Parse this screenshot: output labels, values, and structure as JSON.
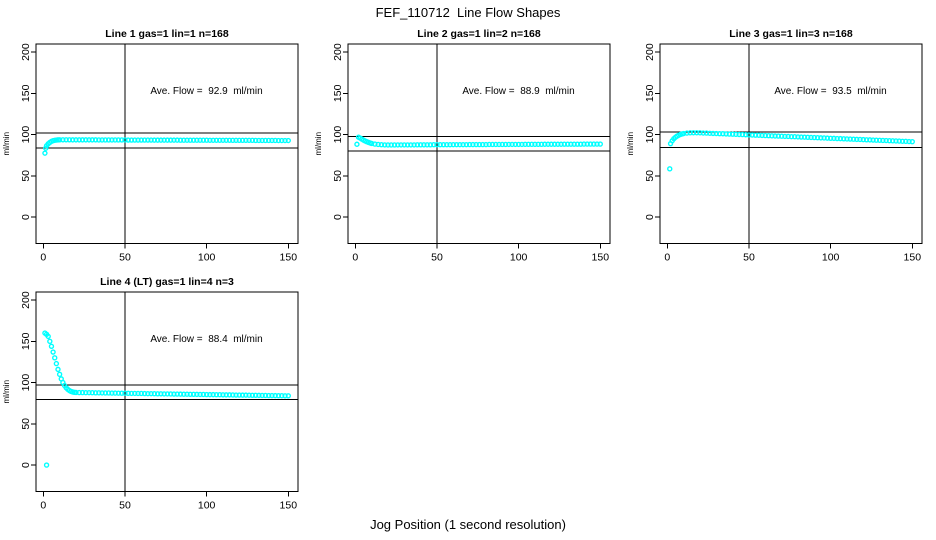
{
  "main_title": "FEF_110712  Line Flow Shapes",
  "x_axis_label": "Jog Position (1 second resolution)",
  "colors": {
    "marker": "#00ffff",
    "axis": "#000000",
    "text": "#000000",
    "background": "#ffffff"
  },
  "chart_data": [
    {
      "type": "scatter",
      "title": "Line 1 gas=1 lin=1 n=168",
      "annotation": "Ave. Flow =  92.9  ml/min",
      "ave_flow_ml_min": 92.9,
      "n": 168,
      "ylabel": "ml/min",
      "xticks": [
        0,
        50,
        100,
        150
      ],
      "yticks": [
        0,
        50,
        100,
        150,
        200
      ],
      "xlim": [
        -5,
        156
      ],
      "ylim": [
        -32,
        210
      ],
      "vline_x": 50,
      "hlines": [
        102.2,
        83.6
      ],
      "grid": false,
      "legend": "none",
      "marker": "open-circle",
      "points": [
        [
          1,
          77.5
        ],
        [
          1.5,
          83.5
        ],
        [
          2,
          86.5
        ],
        [
          3,
          88.8
        ],
        [
          4,
          90.5
        ],
        [
          5,
          91.8
        ],
        [
          6,
          92.6
        ],
        [
          7,
          93.1
        ],
        [
          8,
          93.4
        ],
        [
          9,
          93.6
        ],
        [
          10,
          93.7
        ],
        [
          12,
          93.7
        ],
        [
          14,
          93.7
        ],
        [
          16,
          93.7
        ],
        [
          18,
          93.6
        ],
        [
          20,
          93.6
        ],
        [
          22,
          93.6
        ],
        [
          24,
          93.6
        ],
        [
          26,
          93.6
        ],
        [
          28,
          93.6
        ],
        [
          30,
          93.6
        ],
        [
          32,
          93.6
        ],
        [
          34,
          93.5
        ],
        [
          36,
          93.5
        ],
        [
          38,
          93.5
        ],
        [
          40,
          93.5
        ],
        [
          42,
          93.5
        ],
        [
          44,
          93.5
        ],
        [
          46,
          93.5
        ],
        [
          48,
          93.5
        ],
        [
          50,
          93.5
        ],
        [
          52,
          93.4
        ],
        [
          54,
          93.4
        ],
        [
          56,
          93.4
        ],
        [
          58,
          93.4
        ],
        [
          60,
          93.4
        ],
        [
          62,
          93.4
        ],
        [
          64,
          93.4
        ],
        [
          66,
          93.4
        ],
        [
          68,
          93.3
        ],
        [
          70,
          93.3
        ],
        [
          72,
          93.3
        ],
        [
          74,
          93.3
        ],
        [
          76,
          93.3
        ],
        [
          78,
          93.3
        ],
        [
          80,
          93.3
        ],
        [
          82,
          93.3
        ],
        [
          84,
          93.2
        ],
        [
          86,
          93.2
        ],
        [
          88,
          93.2
        ],
        [
          90,
          93.2
        ],
        [
          92,
          93.2
        ],
        [
          94,
          93.2
        ],
        [
          96,
          93.2
        ],
        [
          98,
          93.2
        ],
        [
          100,
          93.2
        ],
        [
          102,
          93.1
        ],
        [
          104,
          93.1
        ],
        [
          106,
          93.1
        ],
        [
          108,
          93.1
        ],
        [
          110,
          93.1
        ],
        [
          112,
          93.1
        ],
        [
          114,
          93.1
        ],
        [
          116,
          93.0
        ],
        [
          118,
          93.0
        ],
        [
          120,
          93.0
        ],
        [
          122,
          93.0
        ],
        [
          124,
          93.0
        ],
        [
          126,
          93.0
        ],
        [
          128,
          93.0
        ],
        [
          130,
          92.9
        ],
        [
          132,
          92.9
        ],
        [
          134,
          92.9
        ],
        [
          136,
          92.9
        ],
        [
          138,
          92.9
        ],
        [
          140,
          92.9
        ],
        [
          142,
          92.9
        ],
        [
          144,
          92.8
        ],
        [
          146,
          92.8
        ],
        [
          148,
          92.8
        ],
        [
          150,
          92.8
        ]
      ]
    },
    {
      "type": "scatter",
      "title": "Line 2 gas=1 lin=2 n=168",
      "annotation": "Ave. Flow =  88.9  ml/min",
      "ave_flow_ml_min": 88.9,
      "n": 168,
      "ylabel": "ml/min",
      "xticks": [
        0,
        50,
        100,
        150
      ],
      "yticks": [
        0,
        50,
        100,
        150,
        200
      ],
      "xlim": [
        -5,
        156
      ],
      "ylim": [
        -32,
        210
      ],
      "vline_x": 50,
      "hlines": [
        97.8,
        80.0
      ],
      "grid": false,
      "legend": "none",
      "marker": "open-circle",
      "points": [
        [
          1,
          88.3
        ],
        [
          2,
          96.8
        ],
        [
          3,
          95.8
        ],
        [
          4,
          94.6
        ],
        [
          5,
          93.4
        ],
        [
          6,
          92.3
        ],
        [
          7,
          91.4
        ],
        [
          8,
          90.6
        ],
        [
          9,
          89.9
        ],
        [
          10,
          89.3
        ],
        [
          12,
          88.5
        ],
        [
          14,
          88.0
        ],
        [
          16,
          87.7
        ],
        [
          18,
          87.5
        ],
        [
          20,
          87.4
        ],
        [
          22,
          87.4
        ],
        [
          24,
          87.4
        ],
        [
          26,
          87.5
        ],
        [
          28,
          87.5
        ],
        [
          30,
          87.5
        ],
        [
          32,
          87.5
        ],
        [
          34,
          87.5
        ],
        [
          36,
          87.5
        ],
        [
          38,
          87.6
        ],
        [
          40,
          87.6
        ],
        [
          42,
          87.6
        ],
        [
          44,
          87.6
        ],
        [
          46,
          87.6
        ],
        [
          48,
          87.7
        ],
        [
          50,
          87.7
        ],
        [
          52,
          87.7
        ],
        [
          54,
          87.7
        ],
        [
          56,
          87.7
        ],
        [
          58,
          87.7
        ],
        [
          60,
          87.8
        ],
        [
          62,
          87.8
        ],
        [
          64,
          87.8
        ],
        [
          66,
          87.8
        ],
        [
          68,
          87.8
        ],
        [
          70,
          87.9
        ],
        [
          72,
          87.9
        ],
        [
          74,
          87.9
        ],
        [
          76,
          87.9
        ],
        [
          78,
          87.9
        ],
        [
          80,
          87.9
        ],
        [
          82,
          88.0
        ],
        [
          84,
          88.0
        ],
        [
          86,
          88.0
        ],
        [
          88,
          88.0
        ],
        [
          90,
          88.0
        ],
        [
          92,
          88.0
        ],
        [
          94,
          88.1
        ],
        [
          96,
          88.1
        ],
        [
          98,
          88.1
        ],
        [
          100,
          88.1
        ],
        [
          102,
          88.1
        ],
        [
          104,
          88.2
        ],
        [
          106,
          88.2
        ],
        [
          108,
          88.2
        ],
        [
          110,
          88.2
        ],
        [
          112,
          88.2
        ],
        [
          114,
          88.2
        ],
        [
          116,
          88.3
        ],
        [
          118,
          88.3
        ],
        [
          120,
          88.3
        ],
        [
          122,
          88.3
        ],
        [
          124,
          88.3
        ],
        [
          126,
          88.3
        ],
        [
          128,
          88.4
        ],
        [
          130,
          88.4
        ],
        [
          132,
          88.4
        ],
        [
          134,
          88.4
        ],
        [
          136,
          88.4
        ],
        [
          138,
          88.4
        ],
        [
          140,
          88.5
        ],
        [
          142,
          88.5
        ],
        [
          144,
          88.5
        ],
        [
          146,
          88.5
        ],
        [
          148,
          88.5
        ],
        [
          150,
          88.5
        ]
      ]
    },
    {
      "type": "scatter",
      "title": "Line 3 gas=1 lin=3 n=168",
      "annotation": "Ave. Flow =  93.5  ml/min",
      "ave_flow_ml_min": 93.5,
      "n": 168,
      "ylabel": "ml/min",
      "xticks": [
        0,
        50,
        100,
        150
      ],
      "yticks": [
        0,
        50,
        100,
        150,
        200
      ],
      "xlim": [
        -5,
        156
      ],
      "ylim": [
        -32,
        210
      ],
      "vline_x": 50,
      "hlines": [
        102.9,
        84.2
      ],
      "grid": false,
      "legend": "none",
      "marker": "open-circle",
      "points": [
        [
          1.5,
          58.5
        ],
        [
          2,
          89.0
        ],
        [
          3,
          92.5
        ],
        [
          4,
          95.0
        ],
        [
          5,
          96.8
        ],
        [
          6,
          98.2
        ],
        [
          7,
          99.3
        ],
        [
          8,
          100.2
        ],
        [
          9,
          100.8
        ],
        [
          10,
          101.3
        ],
        [
          12,
          101.8
        ],
        [
          14,
          102.1
        ],
        [
          16,
          102.2
        ],
        [
          18,
          102.2
        ],
        [
          20,
          102.1
        ],
        [
          22,
          101.9
        ],
        [
          24,
          101.8
        ],
        [
          26,
          101.6
        ],
        [
          28,
          101.4
        ],
        [
          30,
          101.3
        ],
        [
          32,
          101.1
        ],
        [
          34,
          101.0
        ],
        [
          36,
          100.8
        ],
        [
          38,
          100.6
        ],
        [
          40,
          100.5
        ],
        [
          42,
          100.3
        ],
        [
          44,
          100.1
        ],
        [
          46,
          100.0
        ],
        [
          48,
          99.8
        ],
        [
          50,
          99.6
        ],
        [
          52,
          99.5
        ],
        [
          54,
          99.3
        ],
        [
          56,
          99.2
        ],
        [
          58,
          99.0
        ],
        [
          60,
          98.8
        ],
        [
          62,
          98.7
        ],
        [
          64,
          98.5
        ],
        [
          66,
          98.3
        ],
        [
          68,
          98.2
        ],
        [
          70,
          98.0
        ],
        [
          72,
          97.8
        ],
        [
          74,
          97.7
        ],
        [
          76,
          97.5
        ],
        [
          78,
          97.4
        ],
        [
          80,
          97.2
        ],
        [
          82,
          97.0
        ],
        [
          84,
          96.9
        ],
        [
          86,
          96.7
        ],
        [
          88,
          96.5
        ],
        [
          90,
          96.4
        ],
        [
          92,
          96.2
        ],
        [
          94,
          96.0
        ],
        [
          96,
          95.9
        ],
        [
          98,
          95.7
        ],
        [
          100,
          95.5
        ],
        [
          102,
          95.4
        ],
        [
          104,
          95.2
        ],
        [
          106,
          95.1
        ],
        [
          108,
          94.9
        ],
        [
          110,
          94.7
        ],
        [
          112,
          94.6
        ],
        [
          114,
          94.4
        ],
        [
          116,
          94.2
        ],
        [
          118,
          94.1
        ],
        [
          120,
          93.9
        ],
        [
          122,
          93.7
        ],
        [
          124,
          93.6
        ],
        [
          126,
          93.4
        ],
        [
          128,
          93.2
        ],
        [
          130,
          93.1
        ],
        [
          132,
          92.9
        ],
        [
          134,
          92.8
        ],
        [
          136,
          92.6
        ],
        [
          138,
          92.4
        ],
        [
          140,
          92.3
        ],
        [
          142,
          92.1
        ],
        [
          144,
          91.9
        ],
        [
          146,
          91.8
        ],
        [
          148,
          91.6
        ],
        [
          150,
          91.4
        ]
      ]
    },
    {
      "type": "scatter",
      "title": "Line 4 (LT) gas=1 lin=4 n=3",
      "annotation": "Ave. Flow =  88.4  ml/min",
      "ave_flow_ml_min": 88.4,
      "n": 3,
      "ylabel": "ml/min",
      "xticks": [
        0,
        50,
        100,
        150
      ],
      "yticks": [
        0,
        50,
        100,
        150,
        200
      ],
      "xlim": [
        -5,
        156
      ],
      "ylim": [
        -32,
        210
      ],
      "vline_x": 50,
      "hlines": [
        97.2,
        79.6
      ],
      "grid": false,
      "legend": "none",
      "marker": "open-circle",
      "points": [
        [
          2,
          0
        ],
        [
          1,
          160.0
        ],
        [
          2,
          158.5
        ],
        [
          3,
          156.0
        ],
        [
          4,
          150.0
        ],
        [
          5,
          144.0
        ],
        [
          6,
          137.0
        ],
        [
          7,
          130.0
        ],
        [
          8,
          123.0
        ],
        [
          9,
          116.0
        ],
        [
          10,
          110.0
        ],
        [
          11,
          104.5
        ],
        [
          12,
          100.0
        ],
        [
          13,
          96.5
        ],
        [
          14,
          93.8
        ],
        [
          15,
          91.8
        ],
        [
          16,
          90.3
        ],
        [
          17,
          89.3
        ],
        [
          18,
          88.6
        ],
        [
          19,
          88.2
        ],
        [
          20,
          88.0
        ],
        [
          22,
          87.9
        ],
        [
          24,
          87.9
        ],
        [
          26,
          87.8
        ],
        [
          28,
          87.8
        ],
        [
          30,
          87.7
        ],
        [
          32,
          87.6
        ],
        [
          34,
          87.6
        ],
        [
          36,
          87.5
        ],
        [
          38,
          87.4
        ],
        [
          40,
          87.4
        ],
        [
          42,
          87.3
        ],
        [
          44,
          87.3
        ],
        [
          46,
          87.2
        ],
        [
          48,
          87.1
        ],
        [
          50,
          87.1
        ],
        [
          52,
          87.0
        ],
        [
          54,
          86.9
        ],
        [
          56,
          86.9
        ],
        [
          58,
          86.8
        ],
        [
          60,
          86.8
        ],
        [
          62,
          86.7
        ],
        [
          64,
          86.6
        ],
        [
          66,
          86.6
        ],
        [
          68,
          86.5
        ],
        [
          70,
          86.4
        ],
        [
          72,
          86.4
        ],
        [
          74,
          86.3
        ],
        [
          76,
          86.3
        ],
        [
          78,
          86.2
        ],
        [
          80,
          86.1
        ],
        [
          82,
          86.1
        ],
        [
          84,
          86.0
        ],
        [
          86,
          85.9
        ],
        [
          88,
          85.9
        ],
        [
          90,
          85.8
        ],
        [
          92,
          85.8
        ],
        [
          94,
          85.7
        ],
        [
          96,
          85.6
        ],
        [
          98,
          85.6
        ],
        [
          100,
          85.5
        ],
        [
          102,
          85.4
        ],
        [
          104,
          85.4
        ],
        [
          106,
          85.3
        ],
        [
          108,
          85.3
        ],
        [
          110,
          85.2
        ],
        [
          112,
          85.1
        ],
        [
          114,
          85.1
        ],
        [
          116,
          85.0
        ],
        [
          118,
          84.9
        ],
        [
          120,
          84.9
        ],
        [
          122,
          84.8
        ],
        [
          124,
          84.8
        ],
        [
          126,
          84.7
        ],
        [
          128,
          84.6
        ],
        [
          130,
          84.6
        ],
        [
          132,
          84.5
        ],
        [
          134,
          84.4
        ],
        [
          136,
          84.4
        ],
        [
          138,
          84.3
        ],
        [
          140,
          84.3
        ],
        [
          142,
          84.2
        ],
        [
          144,
          84.1
        ],
        [
          146,
          84.1
        ],
        [
          148,
          84.0
        ],
        [
          150,
          84.0
        ]
      ]
    }
  ]
}
